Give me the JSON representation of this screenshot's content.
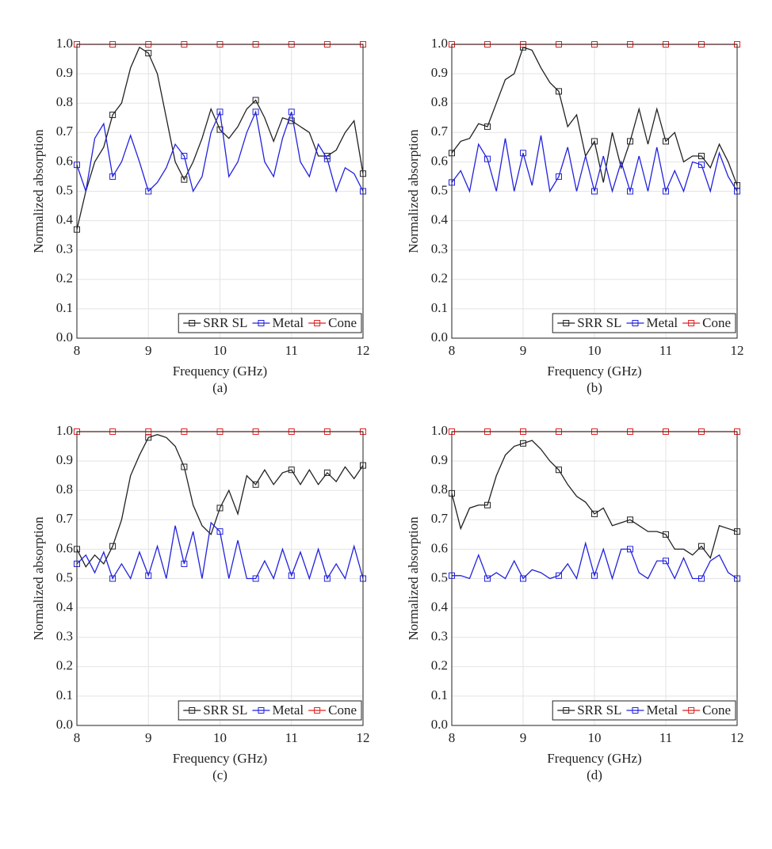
{
  "chart_data": [
    {
      "type": "line",
      "caption": "(a)",
      "xlabel": "Frequency (GHz)",
      "ylabel": "Normalized absorption",
      "xlim": [
        8,
        12
      ],
      "ylim": [
        0,
        1
      ],
      "xticks": [
        8,
        9,
        10,
        11,
        12
      ],
      "yticks": [
        {
          "value": 0,
          "label": "0.0"
        },
        {
          "value": 0.1,
          "label": "0.1"
        },
        {
          "value": 0.2,
          "label": "0.2"
        },
        {
          "value": 0.3,
          "label": "0.3"
        },
        {
          "value": 0.4,
          "label": "0.4"
        },
        {
          "value": 0.5,
          "label": "0.5"
        },
        {
          "value": 0.6,
          "label": "0.6"
        },
        {
          "value": 0.7,
          "label": "0.7"
        },
        {
          "value": 0.8,
          "label": "0.8"
        },
        {
          "value": 0.9,
          "label": "0.9"
        },
        {
          "value": 1,
          "label": "1.0"
        }
      ],
      "grid": true,
      "legend": "lower right",
      "x": [
        8,
        8.125,
        8.25,
        8.375,
        8.5,
        8.625,
        8.75,
        8.875,
        9,
        9.125,
        9.25,
        9.375,
        9.5,
        9.625,
        9.75,
        9.875,
        10,
        10.125,
        10.25,
        10.375,
        10.5,
        10.625,
        10.75,
        10.875,
        11,
        11.125,
        11.25,
        11.375,
        11.5,
        11.625,
        11.75,
        11.875,
        12
      ],
      "series": [
        {
          "name": "SRR SL",
          "color": "#222222",
          "values": [
            0.37,
            0.5,
            0.6,
            0.65,
            0.76,
            0.8,
            0.92,
            0.99,
            0.97,
            0.9,
            0.75,
            0.6,
            0.54,
            0.6,
            0.68,
            0.78,
            0.71,
            0.68,
            0.72,
            0.78,
            0.81,
            0.75,
            0.67,
            0.75,
            0.74,
            0.72,
            0.7,
            0.62,
            0.62,
            0.64,
            0.7,
            0.74,
            0.56
          ]
        },
        {
          "name": "Metal",
          "color": "#2222dd",
          "values": [
            0.59,
            0.5,
            0.68,
            0.73,
            0.55,
            0.6,
            0.69,
            0.6,
            0.5,
            0.53,
            0.58,
            0.66,
            0.62,
            0.5,
            0.55,
            0.7,
            0.77,
            0.55,
            0.6,
            0.7,
            0.77,
            0.6,
            0.55,
            0.68,
            0.77,
            0.6,
            0.55,
            0.66,
            0.61,
            0.5,
            0.58,
            0.56,
            0.5
          ]
        },
        {
          "name": "Cone",
          "color": "#dd2222",
          "values": [
            1,
            1,
            1,
            1,
            1,
            1,
            1,
            1,
            1,
            1,
            1,
            1,
            1,
            1,
            1,
            1,
            1,
            1,
            1,
            1,
            1,
            1,
            1,
            1,
            1,
            1,
            1,
            1,
            1,
            1,
            1,
            1,
            1
          ]
        }
      ]
    },
    {
      "type": "line",
      "caption": "(b)",
      "xlabel": "Frequency (GHz)",
      "ylabel": "Normalized absorption",
      "xlim": [
        8,
        12
      ],
      "ylim": [
        0,
        1
      ],
      "xticks": [
        8,
        9,
        10,
        11,
        12
      ],
      "yticks": [
        {
          "value": 0,
          "label": "0.0"
        },
        {
          "value": 0.1,
          "label": "0.1"
        },
        {
          "value": 0.2,
          "label": "0.2"
        },
        {
          "value": 0.3,
          "label": "0.3"
        },
        {
          "value": 0.4,
          "label": "0.4"
        },
        {
          "value": 0.5,
          "label": "0.5"
        },
        {
          "value": 0.6,
          "label": "0.6"
        },
        {
          "value": 0.7,
          "label": "0.7"
        },
        {
          "value": 0.8,
          "label": "0.8"
        },
        {
          "value": 0.9,
          "label": "0.9"
        },
        {
          "value": 1,
          "label": "1.0"
        }
      ],
      "grid": true,
      "legend": "lower right",
      "x": [
        8,
        8.125,
        8.25,
        8.375,
        8.5,
        8.625,
        8.75,
        8.875,
        9,
        9.125,
        9.25,
        9.375,
        9.5,
        9.625,
        9.75,
        9.875,
        10,
        10.125,
        10.25,
        10.375,
        10.5,
        10.625,
        10.75,
        10.875,
        11,
        11.125,
        11.25,
        11.375,
        11.5,
        11.625,
        11.75,
        11.875,
        12
      ],
      "series": [
        {
          "name": "SRR SL",
          "color": "#222222",
          "values": [
            0.63,
            0.67,
            0.68,
            0.73,
            0.72,
            0.8,
            0.88,
            0.9,
            0.99,
            0.98,
            0.92,
            0.87,
            0.84,
            0.72,
            0.76,
            0.62,
            0.67,
            0.53,
            0.7,
            0.58,
            0.67,
            0.78,
            0.66,
            0.78,
            0.67,
            0.7,
            0.6,
            0.62,
            0.62,
            0.58,
            0.66,
            0.6,
            0.52
          ]
        },
        {
          "name": "Metal",
          "color": "#2222dd",
          "values": [
            0.53,
            0.57,
            0.5,
            0.66,
            0.61,
            0.5,
            0.68,
            0.5,
            0.63,
            0.52,
            0.69,
            0.5,
            0.55,
            0.65,
            0.5,
            0.62,
            0.5,
            0.62,
            0.5,
            0.6,
            0.5,
            0.62,
            0.5,
            0.65,
            0.5,
            0.57,
            0.5,
            0.6,
            0.59,
            0.5,
            0.63,
            0.55,
            0.5
          ]
        },
        {
          "name": "Cone",
          "color": "#dd2222",
          "values": [
            1,
            1,
            1,
            1,
            1,
            1,
            1,
            1,
            1,
            1,
            1,
            1,
            1,
            1,
            1,
            1,
            1,
            1,
            1,
            1,
            1,
            1,
            1,
            1,
            1,
            1,
            1,
            1,
            1,
            1,
            1,
            1,
            1
          ]
        }
      ]
    },
    {
      "type": "line",
      "caption": "(c)",
      "xlabel": "Frequency (GHz)",
      "ylabel": "Normalized absorption",
      "xlim": [
        8,
        12
      ],
      "ylim": [
        0,
        1
      ],
      "xticks": [
        8,
        9,
        10,
        11,
        12
      ],
      "yticks": [
        {
          "value": 0,
          "label": "0.0"
        },
        {
          "value": 0.1,
          "label": "0.1"
        },
        {
          "value": 0.2,
          "label": "0.2"
        },
        {
          "value": 0.3,
          "label": "0.3"
        },
        {
          "value": 0.4,
          "label": "0.4"
        },
        {
          "value": 0.5,
          "label": "0.5"
        },
        {
          "value": 0.6,
          "label": "0.6"
        },
        {
          "value": 0.7,
          "label": "0.7"
        },
        {
          "value": 0.8,
          "label": "0.8"
        },
        {
          "value": 0.9,
          "label": "0.9"
        },
        {
          "value": 1,
          "label": "1.0"
        }
      ],
      "grid": true,
      "legend": "lower right",
      "x": [
        8,
        8.125,
        8.25,
        8.375,
        8.5,
        8.625,
        8.75,
        8.875,
        9,
        9.125,
        9.25,
        9.375,
        9.5,
        9.625,
        9.75,
        9.875,
        10,
        10.125,
        10.25,
        10.375,
        10.5,
        10.625,
        10.75,
        10.875,
        11,
        11.125,
        11.25,
        11.375,
        11.5,
        11.625,
        11.75,
        11.875,
        12
      ],
      "series": [
        {
          "name": "SRR SL",
          "color": "#222222",
          "values": [
            0.6,
            0.54,
            0.58,
            0.55,
            0.61,
            0.7,
            0.85,
            0.92,
            0.98,
            0.99,
            0.98,
            0.95,
            0.88,
            0.75,
            0.68,
            0.65,
            0.74,
            0.8,
            0.72,
            0.85,
            0.82,
            0.87,
            0.82,
            0.86,
            0.87,
            0.82,
            0.87,
            0.82,
            0.86,
            0.83,
            0.88,
            0.84,
            0.885
          ]
        },
        {
          "name": "Metal",
          "color": "#2222dd",
          "values": [
            0.55,
            0.58,
            0.52,
            0.59,
            0.5,
            0.55,
            0.5,
            0.59,
            0.51,
            0.61,
            0.5,
            0.68,
            0.55,
            0.66,
            0.5,
            0.69,
            0.66,
            0.5,
            0.63,
            0.5,
            0.5,
            0.56,
            0.5,
            0.6,
            0.51,
            0.59,
            0.5,
            0.6,
            0.5,
            0.55,
            0.5,
            0.61,
            0.5
          ]
        },
        {
          "name": "Cone",
          "color": "#dd2222",
          "values": [
            1,
            1,
            1,
            1,
            1,
            1,
            1,
            1,
            1,
            1,
            1,
            1,
            1,
            1,
            1,
            1,
            1,
            1,
            1,
            1,
            1,
            1,
            1,
            1,
            1,
            1,
            1,
            1,
            1,
            1,
            1,
            1,
            1
          ]
        }
      ]
    },
    {
      "type": "line",
      "caption": "(d)",
      "xlabel": "Frequency (GHz)",
      "ylabel": "Normalized absorption",
      "xlim": [
        8,
        12
      ],
      "ylim": [
        0,
        1
      ],
      "xticks": [
        8,
        9,
        10,
        11,
        12
      ],
      "yticks": [
        {
          "value": 0,
          "label": "0.0"
        },
        {
          "value": 0.1,
          "label": "0.1"
        },
        {
          "value": 0.2,
          "label": "0.2"
        },
        {
          "value": 0.3,
          "label": "0.3"
        },
        {
          "value": 0.4,
          "label": "0.4"
        },
        {
          "value": 0.5,
          "label": "0.5"
        },
        {
          "value": 0.6,
          "label": "0.6"
        },
        {
          "value": 0.7,
          "label": "0.7"
        },
        {
          "value": 0.8,
          "label": "0.8"
        },
        {
          "value": 0.9,
          "label": "0.9"
        },
        {
          "value": 1,
          "label": "1.0"
        }
      ],
      "grid": true,
      "legend": "lower right",
      "x": [
        8,
        8.125,
        8.25,
        8.375,
        8.5,
        8.625,
        8.75,
        8.875,
        9,
        9.125,
        9.25,
        9.375,
        9.5,
        9.625,
        9.75,
        9.875,
        10,
        10.125,
        10.25,
        10.375,
        10.5,
        10.625,
        10.75,
        10.875,
        11,
        11.125,
        11.25,
        11.375,
        11.5,
        11.625,
        11.75,
        11.875,
        12
      ],
      "series": [
        {
          "name": "SRR SL",
          "color": "#222222",
          "values": [
            0.79,
            0.67,
            0.74,
            0.75,
            0.75,
            0.85,
            0.92,
            0.95,
            0.96,
            0.97,
            0.94,
            0.9,
            0.87,
            0.82,
            0.78,
            0.76,
            0.72,
            0.74,
            0.68,
            0.69,
            0.7,
            0.68,
            0.66,
            0.66,
            0.65,
            0.6,
            0.6,
            0.58,
            0.61,
            0.57,
            0.68,
            0.67,
            0.66
          ]
        },
        {
          "name": "Metal",
          "color": "#2222dd",
          "values": [
            0.51,
            0.51,
            0.5,
            0.58,
            0.5,
            0.52,
            0.5,
            0.56,
            0.5,
            0.53,
            0.52,
            0.5,
            0.51,
            0.55,
            0.5,
            0.62,
            0.51,
            0.6,
            0.5,
            0.6,
            0.6,
            0.52,
            0.5,
            0.56,
            0.56,
            0.5,
            0.57,
            0.5,
            0.5,
            0.56,
            0.58,
            0.52,
            0.5
          ]
        },
        {
          "name": "Cone",
          "color": "#dd2222",
          "values": [
            1,
            1,
            1,
            1,
            1,
            1,
            1,
            1,
            1,
            1,
            1,
            1,
            1,
            1,
            1,
            1,
            1,
            1,
            1,
            1,
            1,
            1,
            1,
            1,
            1,
            1,
            1,
            1,
            1,
            1,
            1,
            1,
            1
          ]
        }
      ]
    }
  ]
}
